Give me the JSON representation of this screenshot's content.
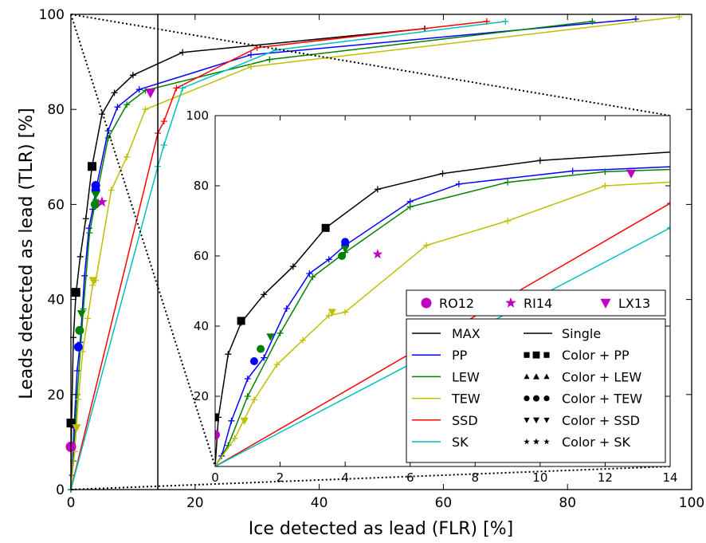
{
  "chart_data": [
    {
      "type": "line",
      "xlabel": "Ice detected as lead (FLR) [%]",
      "ylabel": "Leads detected as lead (TLR) [%]",
      "xlim": [
        0,
        100
      ],
      "ylim": [
        0,
        100
      ],
      "xticks": [
        "0",
        "20",
        "40",
        "60",
        "80",
        "100"
      ],
      "yticks": [
        "0",
        "20",
        "40",
        "60",
        "80",
        "100"
      ],
      "grid": false,
      "vertical_line_x": 14,
      "series": [
        {
          "name": "MAX",
          "color": "#000000",
          "points": [
            [
              0,
              0
            ],
            [
              0.1,
              14
            ],
            [
              0.4,
              32
            ],
            [
              0.8,
              41
            ],
            [
              1.5,
              49
            ],
            [
              2.4,
              57
            ],
            [
              3.4,
              68
            ],
            [
              5,
              79
            ],
            [
              7,
              83.5
            ],
            [
              10,
              87.2
            ],
            [
              18,
              92
            ],
            [
              57,
              97
            ]
          ]
        },
        {
          "name": "PP",
          "color": "#0000ff",
          "points": [
            [
              0,
              0
            ],
            [
              0.2,
              3
            ],
            [
              0.5,
              13
            ],
            [
              1,
              25
            ],
            [
              1.5,
              31
            ],
            [
              2.2,
              45
            ],
            [
              2.9,
              55
            ],
            [
              3.5,
              59
            ],
            [
              4,
              63
            ],
            [
              6,
              75.5
            ],
            [
              7.5,
              80.5
            ],
            [
              11,
              84.2
            ],
            [
              29,
              91.5
            ],
            [
              91,
              99
            ]
          ]
        },
        {
          "name": "LEW",
          "color": "#008000",
          "points": [
            [
              0,
              0
            ],
            [
              0.4,
              6
            ],
            [
              1,
              20
            ],
            [
              2,
              38
            ],
            [
              3,
              54
            ],
            [
              4,
              61
            ],
            [
              6,
              74
            ],
            [
              9,
              81
            ],
            [
              12,
              84
            ],
            [
              32,
              90.5
            ],
            [
              84,
              98.5
            ]
          ]
        },
        {
          "name": "TEW",
          "color": "#bfbf00",
          "points": [
            [
              0,
              0
            ],
            [
              0.6,
              8
            ],
            [
              1.2,
              19
            ],
            [
              1.9,
              29
            ],
            [
              2.7,
              36
            ],
            [
              3.5,
              43
            ],
            [
              4,
              44
            ],
            [
              6.5,
              63
            ],
            [
              9,
              70
            ],
            [
              12,
              80
            ],
            [
              29,
              89
            ],
            [
              98,
              99.5
            ]
          ]
        },
        {
          "name": "SSD",
          "color": "#ff0000",
          "points": [
            [
              0,
              0
            ],
            [
              14,
              75
            ],
            [
              15,
              77.5
            ],
            [
              17,
              84.5
            ],
            [
              30,
              93
            ],
            [
              67,
              98.5
            ]
          ]
        },
        {
          "name": "SK",
          "color": "#00bfbf",
          "points": [
            [
              0,
              0
            ],
            [
              14,
              68
            ],
            [
              15,
              72.5
            ],
            [
              18,
              84.5
            ],
            [
              33,
              92.5
            ],
            [
              70,
              98.5
            ]
          ]
        }
      ],
      "markers": [
        {
          "name": "RO12",
          "shape": "circle",
          "color": "#bf00bf",
          "x": 0,
          "y": 9
        },
        {
          "name": "RI14",
          "shape": "star",
          "color": "#bf00bf",
          "x": 5,
          "y": 60.5
        },
        {
          "name": "LX13",
          "shape": "triangle-down",
          "color": "#bf00bf",
          "x": 12.8,
          "y": 83.5
        }
      ],
      "color_markers": [
        {
          "group": "PP",
          "shape": "square",
          "color": "#000000",
          "points": [
            [
              0,
              14
            ],
            [
              0.8,
              41.5
            ],
            [
              3.4,
              68
            ]
          ]
        },
        {
          "group": "PP",
          "shape": "circle",
          "color": "#0000ff",
          "points": [
            [
              1.2,
              30
            ],
            [
              4,
              63
            ],
            [
              4,
              64
            ]
          ]
        },
        {
          "group": "LEW",
          "shape": "circle",
          "color": "#008000",
          "points": [
            [
              1.4,
              33.5
            ],
            [
              3.9,
              60
            ]
          ]
        },
        {
          "group": "SSD",
          "shape": "triangle-down",
          "color": "#008000",
          "points": [
            [
              1.7,
              37
            ],
            [
              4,
              62
            ]
          ]
        },
        {
          "group": "TEW",
          "shape": "triangle-down",
          "color": "#bfbf00",
          "points": [
            [
              0.9,
              13
            ],
            [
              3.6,
              44
            ]
          ]
        }
      ]
    },
    {
      "type": "line",
      "inset": true,
      "xlim": [
        0,
        14
      ],
      "ylim": [
        0,
        100
      ],
      "xticks": [
        "0",
        "2",
        "4",
        "6",
        "8",
        "10",
        "12",
        "14"
      ],
      "yticks": [
        "20",
        "40",
        "60",
        "80",
        "100"
      ]
    }
  ],
  "legend_markers": {
    "placement": "inset",
    "items": [
      {
        "label": "RO12",
        "shape": "circle"
      },
      {
        "label": "RI14",
        "shape": "star"
      },
      {
        "label": "LX13",
        "shape": "triangle-down"
      }
    ]
  },
  "legend_methods": {
    "placement": "inset lower-right",
    "lines": [
      {
        "label": "MAX",
        "color": "#000000"
      },
      {
        "label": "PP",
        "color": "#0000ff"
      },
      {
        "label": "LEW",
        "color": "#008000"
      },
      {
        "label": "TEW",
        "color": "#bfbf00"
      },
      {
        "label": "SSD",
        "color": "#ff0000"
      },
      {
        "label": "SK",
        "color": "#00bfbf"
      }
    ],
    "styles": [
      {
        "label": "Single",
        "shape": "line"
      },
      {
        "label": "Color + PP",
        "shape": "square"
      },
      {
        "label": "Color + LEW",
        "shape": "triangle-up"
      },
      {
        "label": "Color + TEW",
        "shape": "circle"
      },
      {
        "label": "Color + SSD",
        "shape": "triangle-down"
      },
      {
        "label": "Color + SK",
        "shape": "star"
      }
    ]
  }
}
